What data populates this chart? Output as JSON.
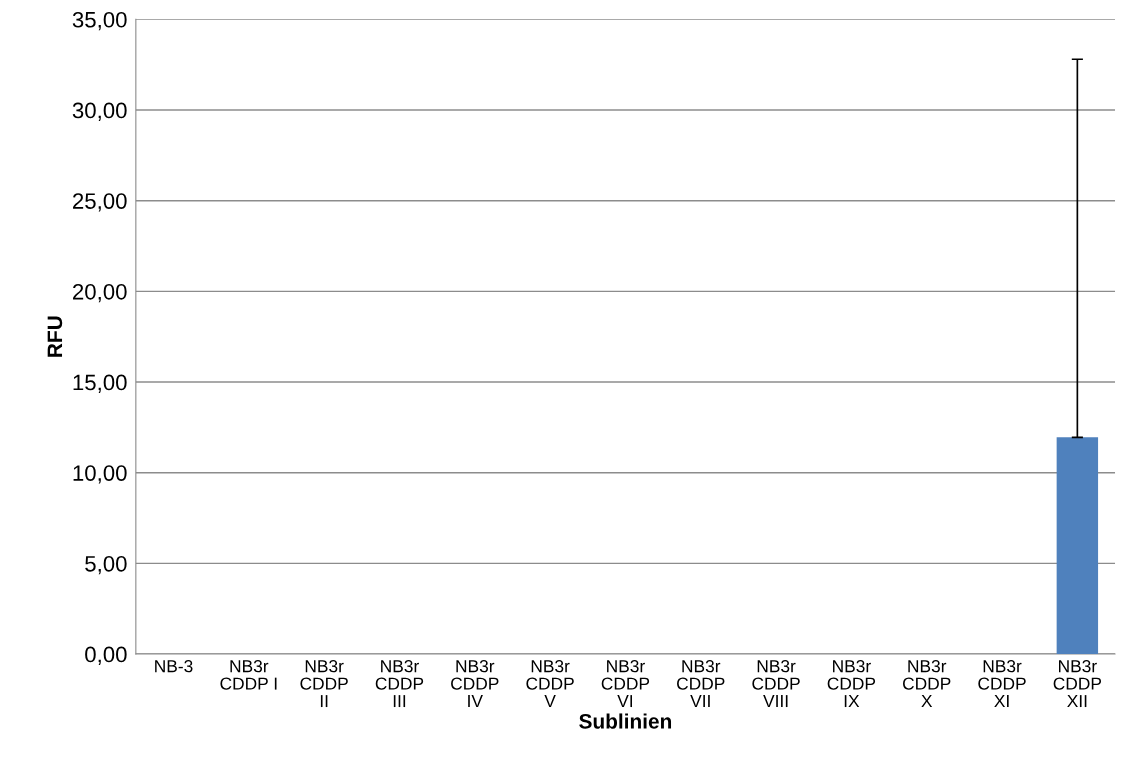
{
  "chart_data": {
    "type": "bar",
    "xlabel": "Sublinien",
    "ylabel": "RFU",
    "categories": [
      "NB-3",
      "NB3r\nCDDP I",
      "NB3r\nCDDP\nII",
      "NB3r\nCDDP\nIII",
      "NB3r\nCDDP\nIV",
      "NB3r\nCDDP\nV",
      "NB3r\nCDDP\nVI",
      "NB3r\nCDDP\nVII",
      "NB3r\nCDDP\nVIII",
      "NB3r\nCDDP\nIX",
      "NB3r\nCDDP\nX",
      "NB3r\nCDDP\nXI",
      "NB3r\nCDDP\nXII"
    ],
    "values": [
      0,
      0,
      0,
      0,
      0,
      0,
      0,
      0,
      0,
      0,
      0,
      0,
      11.95
    ],
    "errors": [
      null,
      null,
      null,
      null,
      null,
      null,
      null,
      null,
      null,
      null,
      null,
      null,
      [
        11.95,
        32.8
      ]
    ],
    "color": "#4f81bd",
    "ylim": [
      0,
      35
    ],
    "yticks": [
      {
        "value": 0,
        "label": "0,00"
      },
      {
        "value": 5,
        "label": "5,00"
      },
      {
        "value": 10,
        "label": "10,00"
      },
      {
        "value": 15,
        "label": "15,00"
      },
      {
        "value": 20,
        "label": "20,00"
      },
      {
        "value": 25,
        "label": "25,00"
      },
      {
        "value": 30,
        "label": "30,00"
      },
      {
        "value": 35,
        "label": "35,00"
      }
    ],
    "grid": "y",
    "legend": false
  }
}
